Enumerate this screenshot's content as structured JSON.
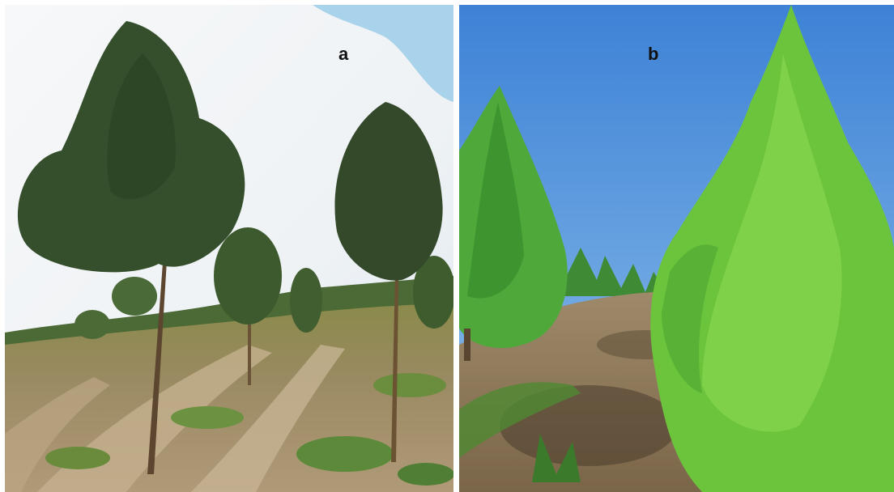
{
  "panels": [
    {
      "label": "a"
    },
    {
      "label": "b"
    }
  ]
}
